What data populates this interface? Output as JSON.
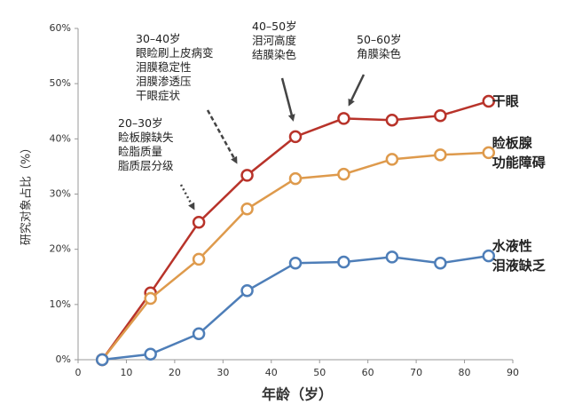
{
  "chart_data": {
    "type": "line",
    "x_label": "年龄（岁）",
    "y_label": "研究对象占比（%）",
    "x": [
      5,
      15,
      25,
      35,
      45,
      55,
      65,
      75,
      85
    ],
    "series": [
      {
        "name": "干眼",
        "color": "#b8332a",
        "values": [
          0,
          12.1,
          24.9,
          33.4,
          40.4,
          43.7,
          43.4,
          44.2,
          46.8
        ]
      },
      {
        "name": "睑板腺\n功能障碍",
        "color": "#de9a4c",
        "values": [
          0,
          11.1,
          18.2,
          27.3,
          32.8,
          33.6,
          36.3,
          37.1,
          37.5
        ]
      },
      {
        "name": "水液性\n泪液缺乏",
        "color": "#4e7eb8",
        "values": [
          0,
          1.0,
          4.7,
          12.5,
          17.5,
          17.7,
          18.6,
          17.5,
          18.8
        ]
      }
    ],
    "xlim": [
      0,
      90
    ],
    "xticks": [
      0,
      10,
      20,
      30,
      40,
      50,
      60,
      70,
      80,
      90
    ],
    "ylim": [
      0,
      60
    ],
    "yticks": [
      {
        "value": 0,
        "label": "0%"
      },
      {
        "value": 10,
        "label": "10%"
      },
      {
        "value": 20,
        "label": "20%"
      },
      {
        "value": 30,
        "label": "30%"
      },
      {
        "value": 40,
        "label": "40%"
      },
      {
        "value": 50,
        "label": "50%"
      },
      {
        "value": 60,
        "label": "60%"
      }
    ],
    "annotations": [
      {
        "text": "20–30岁\n睑板腺缺失\n睑脂质量\n脂质层分级"
      },
      {
        "text": "30–40岁\n眼睑刷上皮病变\n泪膜稳定性\n泪膜渗透压\n干眼症状"
      },
      {
        "text": "40–50岁\n泪河高度\n结膜染色"
      },
      {
        "text": "50–60岁\n角膜染色"
      }
    ]
  }
}
